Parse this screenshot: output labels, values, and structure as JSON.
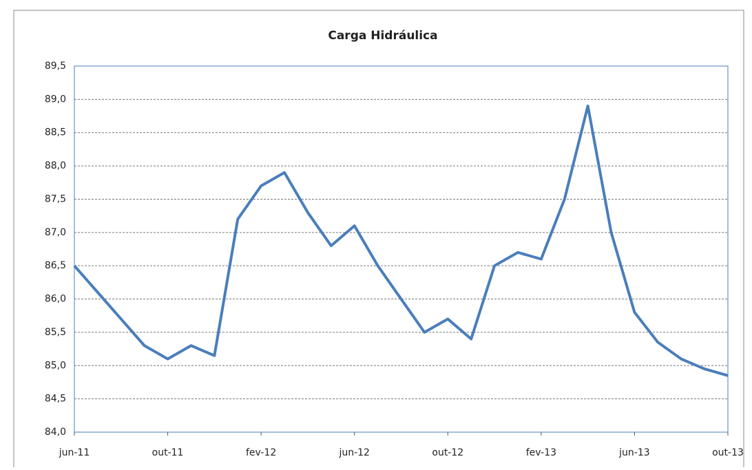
{
  "chart_data": {
    "type": "line",
    "title": "Carga Hidráulica",
    "categories": [
      "jun-11",
      null,
      null,
      null,
      "out-11",
      null,
      null,
      null,
      "fev-12",
      null,
      null,
      null,
      "jun-12",
      null,
      null,
      null,
      "out-12",
      null,
      null,
      null,
      "fev-13",
      null,
      null,
      null,
      "jun-13",
      null,
      null,
      null,
      "out-13"
    ],
    "series": [
      {
        "name": "Carga Hidráulica",
        "color": "#4a7ebb",
        "values": [
          86.5,
          86.1,
          85.7,
          85.3,
          85.1,
          85.3,
          85.15,
          87.2,
          87.7,
          87.9,
          87.3,
          86.8,
          87.1,
          86.5,
          86.0,
          85.5,
          85.7,
          85.4,
          86.5,
          86.7,
          86.6,
          87.5,
          88.9,
          87.0,
          85.8,
          85.35,
          85.1,
          84.95,
          84.85
        ]
      }
    ],
    "ylim": [
      84.0,
      89.5
    ],
    "yticks": [
      {
        "value": 84.0,
        "label": "84,0"
      },
      {
        "value": 84.5,
        "label": "84,5"
      },
      {
        "value": 85.0,
        "label": "85,0"
      },
      {
        "value": 85.5,
        "label": "85,5"
      },
      {
        "value": 86.0,
        "label": "86,0"
      },
      {
        "value": 86.5,
        "label": "86,5"
      },
      {
        "value": 87.0,
        "label": "87,0"
      },
      {
        "value": 87.5,
        "label": "87,5"
      },
      {
        "value": 88.0,
        "label": "88,0"
      },
      {
        "value": 88.5,
        "label": "88,5"
      },
      {
        "value": 89.0,
        "label": "89,0"
      },
      {
        "value": 89.5,
        "label": "89,5"
      }
    ],
    "grid": true
  }
}
